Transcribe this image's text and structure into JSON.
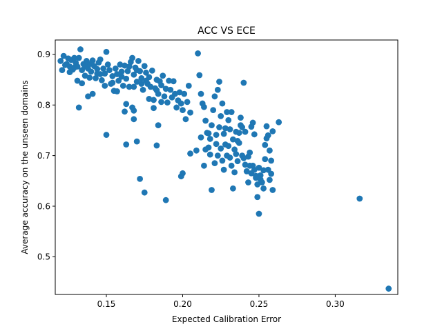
{
  "chart_data": {
    "type": "scatter",
    "title": "ACC VS ECE",
    "xlabel": "Expected Calibration Error",
    "ylabel": "Average accuracy on the unseen domains",
    "xlim": [
      0.1165,
      0.341
    ],
    "ylim": [
      0.4255,
      0.9285
    ],
    "xticks": [
      0.15,
      0.2,
      0.25,
      0.3
    ],
    "xtick_labels": [
      "0.15",
      "0.20",
      "0.25",
      "0.30"
    ],
    "yticks": [
      0.5,
      0.6,
      0.7,
      0.8,
      0.9
    ],
    "ytick_labels": [
      "0.5",
      "0.6",
      "0.7",
      "0.8",
      "0.9"
    ],
    "grid": false,
    "legend": "none",
    "marker_color": "#1f77b4",
    "points": [
      [
        0.12,
        0.887
      ],
      [
        0.121,
        0.869
      ],
      [
        0.122,
        0.897
      ],
      [
        0.124,
        0.881
      ],
      [
        0.125,
        0.892
      ],
      [
        0.126,
        0.876
      ],
      [
        0.127,
        0.889
      ],
      [
        0.128,
        0.87
      ],
      [
        0.129,
        0.893
      ],
      [
        0.13,
        0.883
      ],
      [
        0.131,
        0.876
      ],
      [
        0.132,
        0.893
      ],
      [
        0.133,
        0.91
      ],
      [
        0.134,
        0.869
      ],
      [
        0.135,
        0.881
      ],
      [
        0.136,
        0.858
      ],
      [
        0.137,
        0.887
      ],
      [
        0.138,
        0.872
      ],
      [
        0.139,
        0.881
      ],
      [
        0.14,
        0.866
      ],
      [
        0.141,
        0.888
      ],
      [
        0.142,
        0.877
      ],
      [
        0.143,
        0.853
      ],
      [
        0.144,
        0.871
      ],
      [
        0.145,
        0.884
      ],
      [
        0.146,
        0.861
      ],
      [
        0.147,
        0.849
      ],
      [
        0.148,
        0.872
      ],
      [
        0.149,
        0.838
      ],
      [
        0.15,
        0.905
      ],
      [
        0.152,
        0.869
      ],
      [
        0.153,
        0.842
      ],
      [
        0.154,
        0.857
      ],
      [
        0.155,
        0.828
      ],
      [
        0.156,
        0.872
      ],
      [
        0.157,
        0.861
      ],
      [
        0.158,
        0.848
      ],
      [
        0.159,
        0.88
      ],
      [
        0.16,
        0.866
      ],
      [
        0.161,
        0.838
      ],
      [
        0.162,
        0.878
      ],
      [
        0.163,
        0.852
      ],
      [
        0.164,
        0.867
      ],
      [
        0.165,
        0.836
      ],
      [
        0.166,
        0.885
      ],
      [
        0.167,
        0.893
      ],
      [
        0.168,
        0.86
      ],
      [
        0.169,
        0.874
      ],
      [
        0.17,
        0.846
      ],
      [
        0.171,
        0.887
      ],
      [
        0.172,
        0.867
      ],
      [
        0.173,
        0.853
      ],
      [
        0.174,
        0.83
      ],
      [
        0.175,
        0.877
      ],
      [
        0.176,
        0.864
      ],
      [
        0.177,
        0.842
      ],
      [
        0.178,
        0.855
      ],
      [
        0.179,
        0.836
      ],
      [
        0.18,
        0.868
      ],
      [
        0.181,
        0.81
      ],
      [
        0.182,
        0.833
      ],
      [
        0.183,
        0.85
      ],
      [
        0.184,
        0.822
      ],
      [
        0.185,
        0.847
      ],
      [
        0.186,
        0.839
      ],
      [
        0.187,
        0.858
      ],
      [
        0.188,
        0.817
      ],
      [
        0.189,
        0.832
      ],
      [
        0.19,
        0.805
      ],
      [
        0.191,
        0.848
      ],
      [
        0.192,
        0.83
      ],
      [
        0.193,
        0.815
      ],
      [
        0.194,
        0.847
      ],
      [
        0.195,
        0.822
      ],
      [
        0.196,
        0.795
      ],
      [
        0.197,
        0.809
      ],
      [
        0.198,
        0.825
      ],
      [
        0.199,
        0.803
      ],
      [
        0.2,
        0.79
      ],
      [
        0.201,
        0.822
      ],
      [
        0.202,
        0.772
      ],
      [
        0.203,
        0.806
      ],
      [
        0.204,
        0.838
      ],
      [
        0.205,
        0.785
      ],
      [
        0.123,
        0.879
      ],
      [
        0.126,
        0.865
      ],
      [
        0.129,
        0.874
      ],
      [
        0.131,
        0.848
      ],
      [
        0.134,
        0.843
      ],
      [
        0.136,
        0.876
      ],
      [
        0.139,
        0.854
      ],
      [
        0.141,
        0.822
      ],
      [
        0.144,
        0.862
      ],
      [
        0.146,
        0.89
      ],
      [
        0.149,
        0.862
      ],
      [
        0.151,
        0.88
      ],
      [
        0.154,
        0.844
      ],
      [
        0.157,
        0.827
      ],
      [
        0.16,
        0.856
      ],
      [
        0.163,
        0.802
      ],
      [
        0.165,
        0.876
      ],
      [
        0.168,
        0.836
      ],
      [
        0.17,
        0.869
      ],
      [
        0.173,
        0.842
      ],
      [
        0.176,
        0.848
      ],
      [
        0.178,
        0.812
      ],
      [
        0.183,
        0.829
      ],
      [
        0.186,
        0.806
      ],
      [
        0.132,
        0.795
      ],
      [
        0.138,
        0.817
      ],
      [
        0.15,
        0.741
      ],
      [
        0.162,
        0.787
      ],
      [
        0.163,
        0.722
      ],
      [
        0.167,
        0.795
      ],
      [
        0.168,
        0.789
      ],
      [
        0.168,
        0.772
      ],
      [
        0.17,
        0.728
      ],
      [
        0.172,
        0.654
      ],
      [
        0.175,
        0.627
      ],
      [
        0.181,
        0.794
      ],
      [
        0.183,
        0.72
      ],
      [
        0.184,
        0.76
      ],
      [
        0.189,
        0.612
      ],
      [
        0.199,
        0.659
      ],
      [
        0.2,
        0.665
      ],
      [
        0.205,
        0.704
      ],
      [
        0.209,
        0.71
      ],
      [
        0.21,
        0.902
      ],
      [
        0.211,
        0.859
      ],
      [
        0.212,
        0.822
      ],
      [
        0.213,
        0.803
      ],
      [
        0.214,
        0.796
      ],
      [
        0.215,
        0.769
      ],
      [
        0.216,
        0.745
      ],
      [
        0.217,
        0.716
      ],
      [
        0.218,
        0.733
      ],
      [
        0.219,
        0.76
      ],
      [
        0.22,
        0.79
      ],
      [
        0.221,
        0.817
      ],
      [
        0.222,
        0.723
      ],
      [
        0.223,
        0.7
      ],
      [
        0.224,
        0.756
      ],
      [
        0.225,
        0.778
      ],
      [
        0.226,
        0.803
      ],
      [
        0.227,
        0.743
      ],
      [
        0.228,
        0.722
      ],
      [
        0.229,
        0.7
      ],
      [
        0.23,
        0.77
      ],
      [
        0.231,
        0.752
      ],
      [
        0.232,
        0.786
      ],
      [
        0.233,
        0.732
      ],
      [
        0.234,
        0.712
      ],
      [
        0.235,
        0.747
      ],
      [
        0.236,
        0.689
      ],
      [
        0.237,
        0.725
      ],
      [
        0.238,
        0.76
      ],
      [
        0.239,
        0.7
      ],
      [
        0.24,
        0.844
      ],
      [
        0.212,
        0.736
      ],
      [
        0.214,
        0.68
      ],
      [
        0.215,
        0.712
      ],
      [
        0.217,
        0.744
      ],
      [
        0.218,
        0.702
      ],
      [
        0.219,
        0.632
      ],
      [
        0.221,
        0.685
      ],
      [
        0.222,
        0.741
      ],
      [
        0.223,
        0.83
      ],
      [
        0.224,
        0.846
      ],
      [
        0.225,
        0.714
      ],
      [
        0.226,
        0.69
      ],
      [
        0.227,
        0.672
      ],
      [
        0.228,
        0.754
      ],
      [
        0.229,
        0.786
      ],
      [
        0.23,
        0.719
      ],
      [
        0.231,
        0.696
      ],
      [
        0.232,
        0.68
      ],
      [
        0.233,
        0.635
      ],
      [
        0.234,
        0.667
      ],
      [
        0.235,
        0.703
      ],
      [
        0.236,
        0.729
      ],
      [
        0.237,
        0.745
      ],
      [
        0.238,
        0.775
      ],
      [
        0.239,
        0.756
      ],
      [
        0.241,
        0.747
      ],
      [
        0.242,
        0.669
      ],
      [
        0.243,
        0.698
      ],
      [
        0.244,
        0.68
      ],
      [
        0.245,
        0.757
      ],
      [
        0.246,
        0.765
      ],
      [
        0.247,
        0.672
      ],
      [
        0.248,
        0.656
      ],
      [
        0.249,
        0.643
      ],
      [
        0.25,
        0.676
      ],
      [
        0.251,
        0.661
      ],
      [
        0.252,
        0.647
      ],
      [
        0.253,
        0.635
      ],
      [
        0.254,
        0.721
      ],
      [
        0.255,
        0.758
      ],
      [
        0.256,
        0.74
      ],
      [
        0.257,
        0.71
      ],
      [
        0.258,
        0.69
      ],
      [
        0.259,
        0.748
      ],
      [
        0.263,
        0.766
      ],
      [
        0.24,
        0.695
      ],
      [
        0.241,
        0.682
      ],
      [
        0.242,
        0.669
      ],
      [
        0.243,
        0.647
      ],
      [
        0.244,
        0.706
      ],
      [
        0.245,
        0.665
      ],
      [
        0.246,
        0.68
      ],
      [
        0.247,
        0.742
      ],
      [
        0.248,
        0.66
      ],
      [
        0.249,
        0.618
      ],
      [
        0.25,
        0.585
      ],
      [
        0.251,
        0.653
      ],
      [
        0.253,
        0.671
      ],
      [
        0.254,
        0.693
      ],
      [
        0.255,
        0.734
      ],
      [
        0.256,
        0.672
      ],
      [
        0.257,
        0.652
      ],
      [
        0.258,
        0.664
      ],
      [
        0.259,
        0.632
      ],
      [
        0.316,
        0.615
      ],
      [
        0.335,
        0.437
      ]
    ]
  }
}
